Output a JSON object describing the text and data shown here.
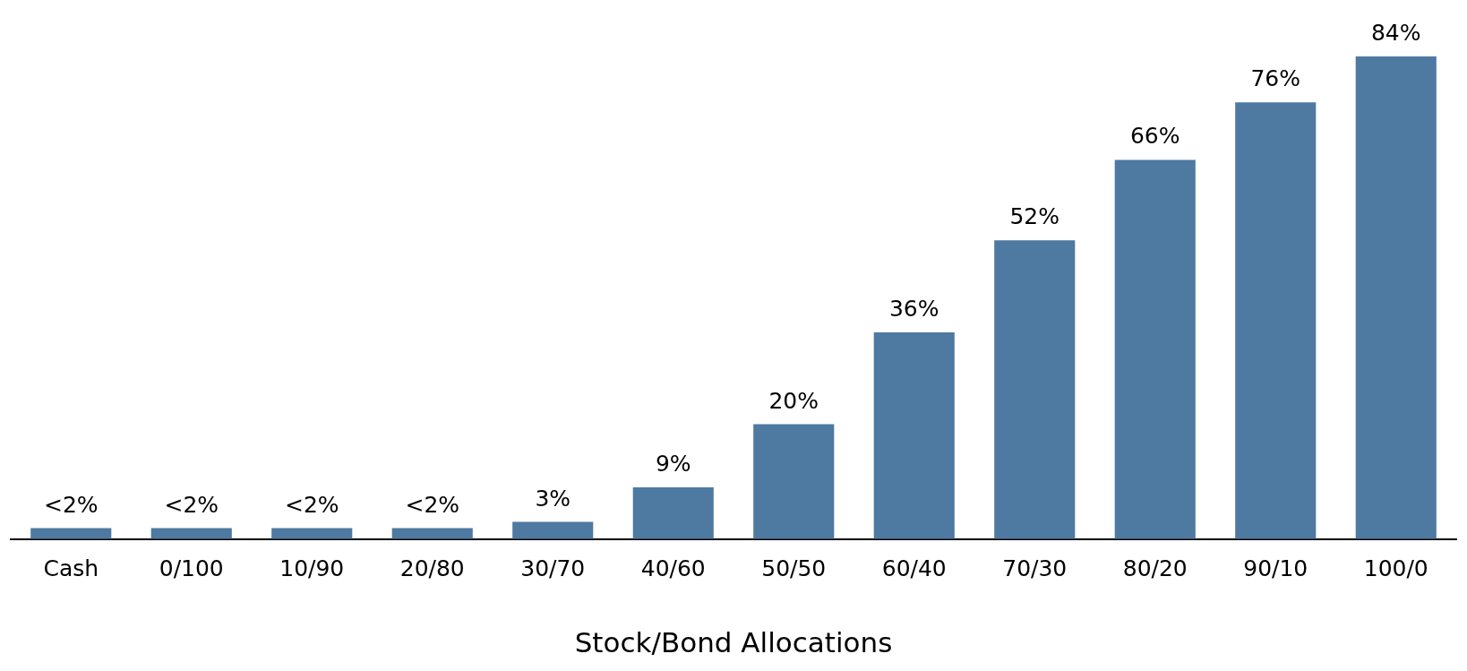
{
  "chart_data": {
    "type": "bar",
    "xlabel": "Stock/Bond Allocations",
    "categories": [
      "Cash",
      "0/100",
      "10/90",
      "20/80",
      "30/70",
      "40/60",
      "50/50",
      "60/40",
      "70/30",
      "80/20",
      "90/10",
      "100/0"
    ],
    "values": [
      1.9,
      1.9,
      1.9,
      1.9,
      3,
      9,
      20,
      36,
      52,
      66,
      76,
      84
    ],
    "value_labels": [
      "<2%",
      "<2%",
      "<2%",
      "<2%",
      "3%",
      "9%",
      "20%",
      "36%",
      "52%",
      "66%",
      "76%",
      "84%"
    ],
    "color": "#4e79a0",
    "grid": false,
    "legend": false
  }
}
